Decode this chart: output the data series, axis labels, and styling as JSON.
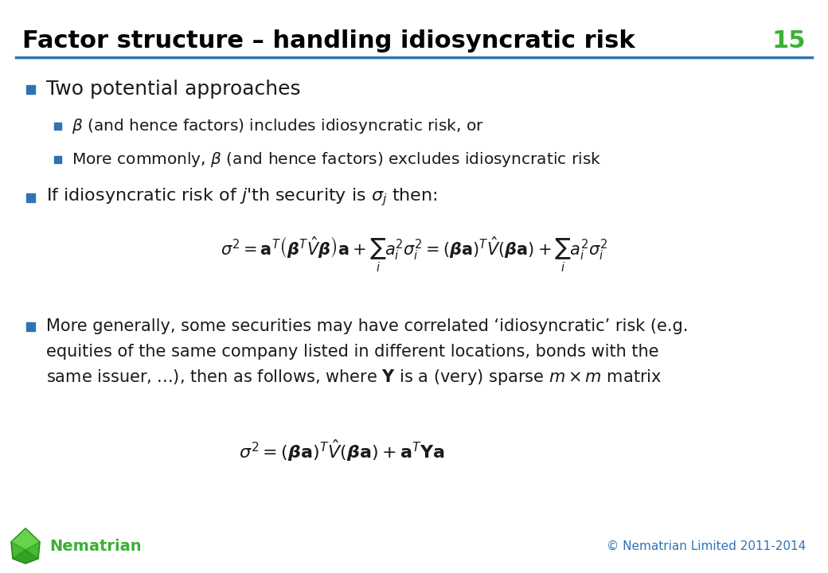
{
  "title": "Factor structure – handling idiosyncratic risk",
  "slide_number": "15",
  "title_color": "#000000",
  "title_fontsize": 22,
  "slide_number_color": "#3cb034",
  "header_line_color": "#2e74b5",
  "bullet_color": "#2e74b5",
  "text_color": "#1a1a1a",
  "footer_left": "Nematrian",
  "footer_right": "© Nematrian Limited 2011-2014",
  "footer_color": "#2e74b5",
  "footer_name_color": "#3cb034",
  "background_color": "#ffffff"
}
